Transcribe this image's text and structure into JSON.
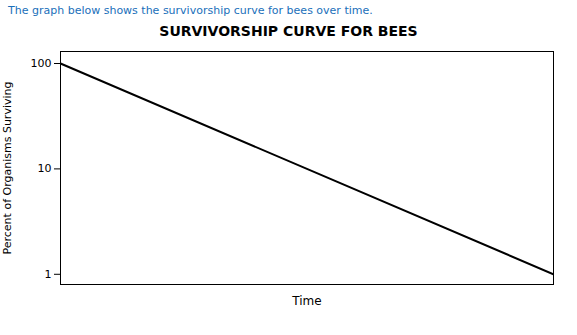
{
  "chart_data": {
    "type": "line",
    "title": "SURVIVORSHIP CURVE FOR BEES",
    "subtitle": "The graph below shows the survivorship curve for bees over time.",
    "x_label": "Time",
    "y_label": "Percent of Organisms Surviving",
    "x": [
      0,
      1
    ],
    "values": [
      100,
      1
    ],
    "color": "#000000",
    "xlim": [
      0,
      1
    ],
    "ylim": [
      0.8,
      130
    ],
    "yticks": [
      1,
      10,
      100
    ],
    "log": "y",
    "grid": false,
    "tick_labels": "y"
  }
}
